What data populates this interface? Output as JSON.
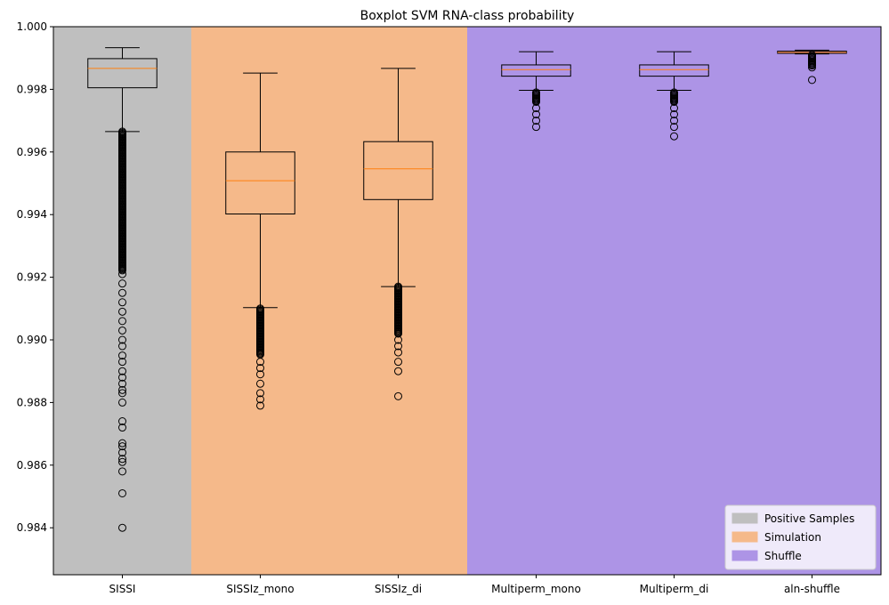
{
  "chart_data": {
    "type": "boxplot",
    "title": "Boxplot SVM RNA-class probability",
    "xlabel": "",
    "ylabel": "",
    "ylim": [
      0.9825,
      1.0
    ],
    "yticks": [
      "0.984",
      "0.986",
      "0.988",
      "0.990",
      "0.992",
      "0.994",
      "0.996",
      "0.998",
      "1.000"
    ],
    "ytick_values": [
      0.984,
      0.986,
      0.988,
      0.99,
      0.992,
      0.994,
      0.996,
      0.998,
      1.0
    ],
    "grid": false,
    "legend_position": "bottom-right",
    "categories": [
      "SISSI",
      "SISSIz_mono",
      "SISSIz_di",
      "Multiperm_mono",
      "Multiperm_di",
      "aln-shuffle"
    ],
    "bands": [
      {
        "label": "Positive Samples",
        "color": "#bfbfbf",
        "from_category": 0,
        "to_category": 0
      },
      {
        "label": "Simulation",
        "color": "#f5b98a",
        "from_category": 1,
        "to_category": 2
      },
      {
        "label": "Shuffle",
        "color": "#ad94e6",
        "from_category": 3,
        "to_category": 5
      }
    ],
    "boxes": [
      {
        "category": "SISSI",
        "whisker_low": 0.99665,
        "q1": 0.99805,
        "median": 0.99867,
        "q3": 0.99898,
        "whisker_high": 0.99933,
        "outliers_dense": [
          0.9922,
          0.99665
        ],
        "outliers": [
          0.9921,
          0.9918,
          0.9915,
          0.9912,
          0.9909,
          0.9906,
          0.9903,
          0.99,
          0.9898,
          0.9895,
          0.9893,
          0.989,
          0.9888,
          0.9886,
          0.9884,
          0.9883,
          0.988,
          0.9874,
          0.9872,
          0.9867,
          0.9866,
          0.9864,
          0.9862,
          0.9861,
          0.9858,
          0.9851,
          0.984
        ]
      },
      {
        "category": "SISSIz_mono",
        "whisker_low": 0.99103,
        "q1": 0.99402,
        "median": 0.99508,
        "q3": 0.996,
        "whisker_high": 0.99852,
        "outliers_dense": [
          0.9895,
          0.991
        ],
        "outliers": [
          0.9893,
          0.9891,
          0.9889,
          0.9886,
          0.9883,
          0.9881,
          0.9879
        ]
      },
      {
        "category": "SISSIz_di",
        "whisker_low": 0.9917,
        "q1": 0.99448,
        "median": 0.99546,
        "q3": 0.99633,
        "whisker_high": 0.99867,
        "outliers_dense": [
          0.9902,
          0.9917
        ],
        "outliers": [
          0.99,
          0.9898,
          0.9896,
          0.9893,
          0.989,
          0.9882
        ]
      },
      {
        "category": "Multiperm_mono",
        "whisker_low": 0.99797,
        "q1": 0.99842,
        "median": 0.99863,
        "q3": 0.99878,
        "whisker_high": 0.9992,
        "outliers_dense": [
          0.9976,
          0.9979
        ],
        "outliers": [
          0.9977,
          0.9976,
          0.9974,
          0.9972,
          0.997,
          0.9968
        ]
      },
      {
        "category": "Multiperm_di",
        "whisker_low": 0.99797,
        "q1": 0.99842,
        "median": 0.99863,
        "q3": 0.99878,
        "whisker_high": 0.9992,
        "outliers_dense": [
          0.9976,
          0.9979
        ],
        "outliers": [
          0.9977,
          0.9976,
          0.9974,
          0.9972,
          0.997,
          0.9968,
          0.9965
        ]
      },
      {
        "category": "aln-shuffle",
        "whisker_low": 0.99913,
        "q1": 0.99915,
        "median": 0.99918,
        "q3": 0.99922,
        "whisker_high": 0.99925,
        "outliers_dense": [
          0.99875,
          0.9991
        ],
        "outliers": [
          0.9987,
          0.9983
        ]
      }
    ],
    "colors": {
      "box": "#000000",
      "median": "#ff7f0e"
    }
  }
}
